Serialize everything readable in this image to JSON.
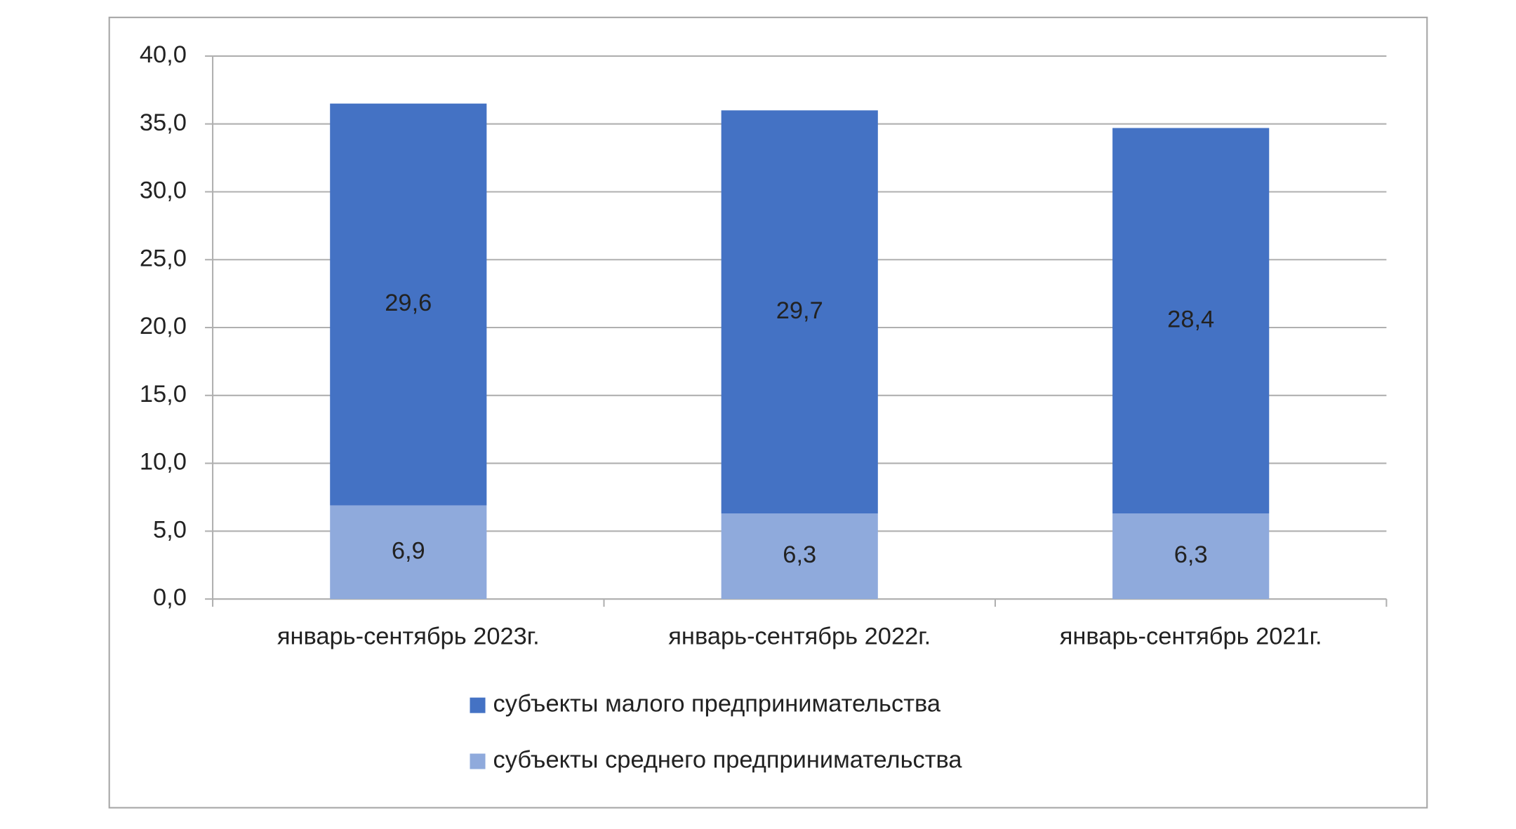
{
  "chart_data": {
    "type": "stacked_bar",
    "categories": [
      "январь-сентябрь 2023г.",
      "январь-сентябрь 2022г.",
      "январь-сентябрь 2021г."
    ],
    "series": [
      {
        "name": "субъекты малого предпринимательства",
        "color": "#4472c4",
        "values": [
          29.6,
          29.7,
          28.4
        ],
        "value_labels": [
          "29,6",
          "29,7",
          "28,4"
        ]
      },
      {
        "name": "субъекты среднего предпринимательства",
        "color": "#8faadc",
        "values": [
          6.9,
          6.3,
          6.3
        ],
        "value_labels": [
          "6,9",
          "6,3",
          "6,3"
        ]
      }
    ],
    "ylim": [
      0,
      40
    ],
    "yticks": [
      {
        "value": 0,
        "label": "0,0"
      },
      {
        "value": 5,
        "label": "5,0"
      },
      {
        "value": 10,
        "label": "10,0"
      },
      {
        "value": 15,
        "label": "15,0"
      },
      {
        "value": 20,
        "label": "20,0"
      },
      {
        "value": 25,
        "label": "25,0"
      },
      {
        "value": 30,
        "label": "30,0"
      },
      {
        "value": 35,
        "label": "35,0"
      },
      {
        "value": 40,
        "label": "40,0"
      }
    ],
    "grid": true,
    "legend": "bottom"
  }
}
